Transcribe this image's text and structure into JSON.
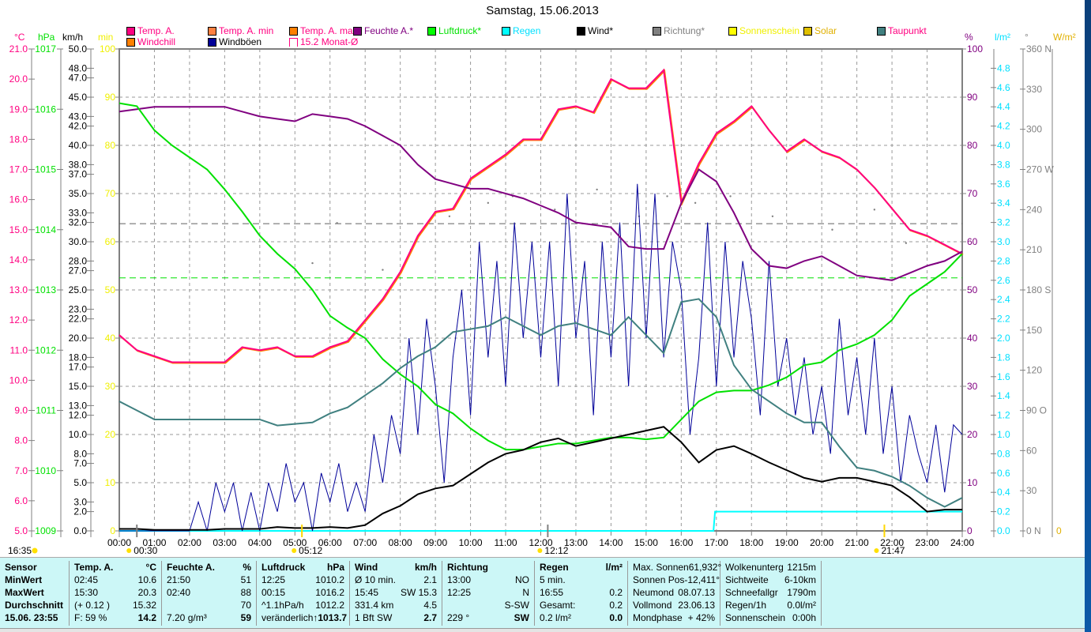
{
  "title": "Samstag, 15.06.2013",
  "legend": [
    {
      "label": "Temp. A.",
      "color": "#ff0080",
      "text_color": "#ff0080"
    },
    {
      "label": "Temp. A. min",
      "color": "#ff8040",
      "text_color": "#ff0080"
    },
    {
      "label": "Temp. A. max",
      "color": "#ff8000",
      "text_color": "#ff0080"
    },
    {
      "label": "Feuchte A.*",
      "color": "#800080",
      "text_color": "#800080"
    },
    {
      "label": "Luftdruck*",
      "color": "#00ff00",
      "text_color": "#00e000"
    },
    {
      "label": "Regen",
      "color": "#00ffff",
      "text_color": "#00e0ff"
    },
    {
      "label": "Wind*",
      "color": "#000000",
      "text_color": "#000000"
    },
    {
      "label": "Richtung*",
      "color": "#808080",
      "text_color": "#808080"
    },
    {
      "label": "Sonnenschein",
      "color": "#ffff00",
      "text_color": "#f0f000"
    },
    {
      "label": "Solar",
      "color": "#e0c000",
      "text_color": "#e0b000"
    },
    {
      "label": "Taupunkt",
      "color": "#408080",
      "text_color": "#ff0080"
    },
    {
      "label": "Windchill",
      "color": "#ff8000",
      "text_color": "#ff0080"
    },
    {
      "label": "Windböen",
      "color": "#000099",
      "text_color": "#000000"
    },
    {
      "label": "15.2 Monat-Ø",
      "color": "#ff0080",
      "text_color": "#ff0080"
    }
  ],
  "units": {
    "c": "°C",
    "hpa": "hPa",
    "kmh": "km/h",
    "min": "min",
    "pct": "%",
    "lm2": "l/m²",
    "deg": "°",
    "wm2": "W/m²"
  },
  "astro": {
    "sunshine": "16:35",
    "moonset": "00:30",
    "sunrise": "05:12",
    "moonrise": "12:12",
    "sunset": "21:47"
  },
  "chart_data": {
    "type": "line",
    "title": "Samstag, 15.06.2013",
    "x_ticks": [
      "00:00",
      "01:00",
      "02:00",
      "03:00",
      "04:00",
      "05:00",
      "06:00",
      "07:00",
      "08:00",
      "09:00",
      "10:00",
      "11:00",
      "12:00",
      "13:00",
      "14:00",
      "15:00",
      "16:00",
      "17:00",
      "18:00",
      "19:00",
      "20:00",
      "21:00",
      "22:00",
      "23:00",
      "24:00"
    ],
    "axes": {
      "temp_c": {
        "range": [
          5,
          21
        ],
        "ticks": [
          "21.0",
          "20.0",
          "19.0",
          "18.0",
          "17.0",
          "16.0",
          "15.0",
          "14.0",
          "13.0",
          "12.0",
          "11.0",
          "10.0",
          "9.0",
          "8.0",
          "7.0",
          "6.0",
          "5.0"
        ]
      },
      "pressure_hpa": {
        "range": [
          1009,
          1017
        ],
        "ticks": [
          "1017",
          "1016",
          "1015",
          "1014",
          "1013",
          "1012",
          "1011",
          "1010",
          "1009"
        ]
      },
      "wind_kmh": {
        "range": [
          0,
          50
        ],
        "ticks": [
          "50.0",
          "48.0",
          "47.0",
          "45.0",
          "43.0",
          "42.0",
          "40.0",
          "38.0",
          "37.0",
          "35.0",
          "33.0",
          "32.0",
          "30.0",
          "28.0",
          "27.0",
          "25.0",
          "23.0",
          "22.0",
          "20.0",
          "18.0",
          "17.0",
          "15.0",
          "13.0",
          "12.0",
          "10.0",
          "8.0",
          "7.0",
          "5.0",
          "3.0",
          "2.0",
          "0.0"
        ]
      },
      "sun_min": {
        "range": [
          0,
          100
        ],
        "ticks": [
          "100",
          "90",
          "80",
          "70",
          "60",
          "50",
          "40",
          "30",
          "20",
          "10",
          "0"
        ]
      },
      "humidity_pct": {
        "range": [
          0,
          100
        ],
        "ticks": [
          "100",
          "90",
          "80",
          "70",
          "60",
          "50",
          "40",
          "30",
          "20",
          "10",
          "0"
        ]
      },
      "rain_lm2": {
        "range": [
          0,
          5
        ],
        "ticks": [
          "4.8",
          "4.6",
          "4.4",
          "4.2",
          "4.0",
          "3.8",
          "3.6",
          "3.4",
          "3.2",
          "3.0",
          "2.8",
          "2.6",
          "2.4",
          "2.2",
          "2.0",
          "1.8",
          "1.6",
          "1.4",
          "1.2",
          "1.0",
          "0.8",
          "0.6",
          "0.4",
          "0.2",
          "0.0"
        ]
      },
      "direction_deg": {
        "range": [
          0,
          360
        ],
        "ticks": [
          "360 N",
          "330",
          "300",
          "270 W",
          "240",
          "210",
          "180 S",
          "150",
          "120",
          "90  O",
          "60",
          "30",
          "0   N"
        ]
      },
      "solar_wm2": {
        "ticks": [
          "0"
        ]
      }
    },
    "time_step_hours": 0.5,
    "series": [
      {
        "name": "Temp. A.",
        "axis": "temp_c",
        "color": "#ff0080",
        "values": [
          11.5,
          11.0,
          10.8,
          10.6,
          10.6,
          10.6,
          10.6,
          11.1,
          11.0,
          11.1,
          10.8,
          10.8,
          11.1,
          11.3,
          12.0,
          12.7,
          13.6,
          14.8,
          15.6,
          15.7,
          16.7,
          17.1,
          17.5,
          18.0,
          18.0,
          19.0,
          19.1,
          18.9,
          20.0,
          19.7,
          19.7,
          20.3,
          15.9,
          17.2,
          18.2,
          18.6,
          19.1,
          18.3,
          17.6,
          18.0,
          17.6,
          17.4,
          17.0,
          16.4,
          15.7,
          15.0,
          14.8,
          14.5,
          14.2
        ]
      },
      {
        "name": "Feuchte A.",
        "axis": "humidity_pct",
        "color": "#800080",
        "values": [
          87,
          87.5,
          88,
          88,
          88,
          88,
          88,
          87,
          86,
          85.5,
          85,
          86.5,
          86,
          85.5,
          84,
          82,
          80,
          76,
          73,
          72,
          71,
          71,
          70,
          69,
          67.5,
          66,
          64,
          63.5,
          63,
          59,
          58.5,
          58.5,
          68,
          75,
          72.5,
          66,
          58.5,
          55,
          54.5,
          56,
          57,
          55,
          53,
          52.5,
          52,
          53.5,
          55,
          56,
          58
        ]
      },
      {
        "name": "Luftdruck",
        "axis": "pressure_hpa",
        "color": "#00e000",
        "values": [
          1016.1,
          1016.05,
          1015.65,
          1015.4,
          1015.2,
          1015.0,
          1014.67,
          1014.3,
          1013.9,
          1013.6,
          1013.35,
          1013.0,
          1012.57,
          1012.37,
          1012.2,
          1011.85,
          1011.6,
          1011.4,
          1011.1,
          1010.95,
          1010.7,
          1010.5,
          1010.35,
          1010.35,
          1010.4,
          1010.45,
          1010.45,
          1010.5,
          1010.55,
          1010.55,
          1010.52,
          1010.55,
          1010.85,
          1011.15,
          1011.3,
          1011.33,
          1011.33,
          1011.42,
          1011.55,
          1011.75,
          1011.8,
          1012.0,
          1012.1,
          1012.25,
          1012.5,
          1012.9,
          1013.1,
          1013.3,
          1013.6
        ]
      },
      {
        "name": "Taupunkt",
        "axis": "temp_c",
        "color": "#408080",
        "values": [
          9.3,
          9.0,
          8.7,
          8.7,
          8.7,
          8.7,
          8.7,
          8.7,
          8.7,
          8.5,
          8.55,
          8.6,
          8.9,
          9.1,
          9.5,
          9.9,
          10.4,
          10.8,
          11.1,
          11.6,
          11.7,
          11.8,
          12.1,
          11.8,
          11.5,
          11.8,
          11.9,
          11.7,
          11.5,
          12.1,
          11.5,
          10.9,
          12.6,
          12.7,
          12.1,
          10.5,
          9.7,
          9.3,
          8.9,
          8.6,
          8.6,
          7.8,
          7.1,
          7.0,
          6.8,
          6.5,
          6.1,
          5.8,
          6.1
        ]
      },
      {
        "name": "Wind",
        "axis": "wind_kmh",
        "color": "#000000",
        "values": [
          0.2,
          0.2,
          0.1,
          0.1,
          0.1,
          0.1,
          0.2,
          0.2,
          0.2,
          0.4,
          0.3,
          0.3,
          0.4,
          0.3,
          0.6,
          1.8,
          2.6,
          3.8,
          4.4,
          4.7,
          5.9,
          7.1,
          8.0,
          8.4,
          9.2,
          9.6,
          8.8,
          9.2,
          9.6,
          10.0,
          10.4,
          10.8,
          9.2,
          7.1,
          8.4,
          8.8,
          8.0,
          7.1,
          6.3,
          5.5,
          5.1,
          5.5,
          5.5,
          5.1,
          4.7,
          3.5,
          2.0,
          2.2,
          2.2
        ]
      }
    ],
    "gusts": {
      "name": "Windböen",
      "axis": "wind_kmh",
      "color": "#000099",
      "time_step_hours": 0.25,
      "values": [
        0,
        0,
        0,
        0,
        0,
        0,
        0,
        0,
        0,
        3,
        0,
        5,
        2,
        5,
        0,
        4,
        0,
        5,
        2,
        7,
        3,
        5,
        0,
        6,
        3,
        7,
        2,
        5,
        2,
        10,
        5,
        12,
        8,
        20,
        10,
        22,
        15,
        5,
        18,
        25,
        12,
        30,
        18,
        28,
        15,
        32,
        20,
        30,
        18,
        30,
        15,
        35,
        20,
        28,
        12,
        30,
        18,
        32,
        15,
        36,
        20,
        35,
        18,
        30,
        25,
        10,
        18,
        32,
        15,
        30,
        18,
        28,
        22,
        12,
        28,
        15,
        20,
        12,
        18,
        10,
        15,
        8,
        22,
        12,
        18,
        10,
        20,
        8,
        15,
        5,
        12,
        8,
        5,
        11,
        4,
        11,
        10
      ]
    },
    "rain": {
      "axis": "rain_lm2",
      "color": "#00ffff",
      "start": 16.917,
      "total": 0.2
    },
    "direction_points": [
      [
        5.5,
        200
      ],
      [
        6.2,
        230
      ],
      [
        7.5,
        195
      ],
      [
        8.3,
        210
      ],
      [
        9.4,
        235
      ],
      [
        10.5,
        245
      ],
      [
        11.2,
        250
      ],
      [
        12.4,
        240
      ],
      [
        13.6,
        255
      ],
      [
        14.8,
        235
      ],
      [
        15.6,
        250
      ],
      [
        16.4,
        245
      ],
      [
        17.4,
        250
      ],
      [
        18.6,
        235
      ],
      [
        20.3,
        225
      ],
      [
        21.5,
        240
      ],
      [
        22.4,
        215
      ],
      [
        23.3,
        200
      ]
    ],
    "reference_lines": [
      {
        "axis": "temp_c",
        "value": 15.2,
        "color": "#606060"
      },
      {
        "axis": "pressure_hpa",
        "value": 1013.2,
        "color": "#00e000"
      }
    ]
  },
  "table": {
    "columns": [
      {
        "rows": [
          [
            "Sensor",
            ""
          ],
          [
            "MinWert",
            ""
          ],
          [
            "MaxWert",
            ""
          ],
          [
            "Durchschnitt",
            ""
          ],
          [
            "15.06. 23:55",
            ""
          ]
        ]
      },
      {
        "rows": [
          [
            "Temp. A.",
            "°C"
          ],
          [
            "02:45",
            "10.6"
          ],
          [
            "15:30",
            "20.3"
          ],
          [
            "(+ 0.12 )",
            "15.32"
          ],
          [
            "F: 59 %",
            "14.2"
          ]
        ]
      },
      {
        "rows": [
          [
            "Feuchte A.",
            "%"
          ],
          [
            "21:50",
            "51"
          ],
          [
            "02:40",
            "88"
          ],
          [
            "",
            "70"
          ],
          [
            "7.20 g/m³",
            "59"
          ]
        ]
      },
      {
        "rows": [
          [
            "Luftdruck",
            "hPa"
          ],
          [
            "12:25",
            "1010.2"
          ],
          [
            "00:15",
            "1016.2"
          ],
          [
            "^1.1hPa/h",
            "1012.2"
          ],
          [
            "veränderlich",
            "↑1013.7"
          ]
        ]
      },
      {
        "rows": [
          [
            "Wind",
            "km/h"
          ],
          [
            "Ø 10 min.",
            "2.1"
          ],
          [
            "15:45",
            "SW 15.3"
          ],
          [
            "331.4 km",
            "4.5"
          ],
          [
            "1 Bft SW",
            "2.7"
          ]
        ]
      },
      {
        "rows": [
          [
            "Richtung",
            ""
          ],
          [
            "13:00",
            "NO"
          ],
          [
            "12:25",
            "N"
          ],
          [
            "",
            "S-SW"
          ],
          [
            "229 °",
            "SW"
          ]
        ]
      },
      {
        "rows": [
          [
            "Regen",
            "l/m²"
          ],
          [
            "5 min.",
            ""
          ],
          [
            "16:55",
            "0.2"
          ],
          [
            "Gesamt:",
            "0.2"
          ],
          [
            "0.2 l/m²",
            "0.0"
          ]
        ]
      },
      {
        "rows": [
          [
            "Max. Sonnen",
            "61,932°"
          ],
          [
            "Sonnen Pos",
            "-12,411°"
          ],
          [
            "Neumond",
            "08.07.13"
          ],
          [
            "Vollmond",
            "23.06.13"
          ],
          [
            "Mondphase",
            "+ 42%"
          ]
        ]
      },
      {
        "rows": [
          [
            "Wolkenunterg",
            "1215m"
          ],
          [
            "Sichtweite",
            "6-10km"
          ],
          [
            "Schneefallgr",
            "1790m"
          ],
          [
            "Regen/1h",
            "0.0l/m²"
          ],
          [
            "Sonnenschein",
            "0:00h"
          ]
        ]
      }
    ]
  }
}
